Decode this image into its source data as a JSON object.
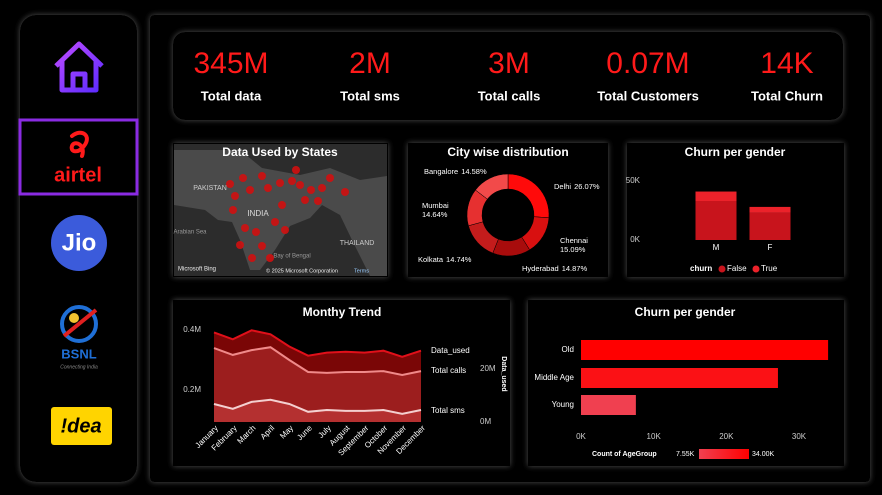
{
  "sidebar": {
    "airtel": "airtel",
    "jio": "Jio",
    "bsnl": "BSNL",
    "bsnl_tagline": "Connecting India",
    "idea": "!dea"
  },
  "kpis": [
    {
      "value": "345M",
      "label": "Total data"
    },
    {
      "value": "2M",
      "label": "Total sms"
    },
    {
      "value": "3M",
      "label": "Total calls"
    },
    {
      "value": "0.07M",
      "label": "Total Customers"
    },
    {
      "value": "14K",
      "label": "Total Churn"
    }
  ],
  "map": {
    "title": "Data Used by States",
    "labels": [
      "PAKISTAN",
      "INDIA",
      "Arabian Sea",
      "Bay of Bengal",
      "THAILAND"
    ],
    "provider": "Microsoft Bing",
    "attribution": "© 2025 Microsoft Corporation",
    "terms": "Terms"
  },
  "chart_data": [
    {
      "type": "donut",
      "title": "City wise distribution",
      "categories": [
        "Delhi",
        "Chennai",
        "Hyderabad",
        "Kolkata",
        "Mumbai",
        "Bangalore"
      ],
      "values": [
        26.07,
        15.09,
        14.87,
        14.74,
        14.64,
        14.58
      ],
      "value_labels": [
        "26.07%",
        "15.09%",
        "14.87%",
        "14.74%",
        "14.64%",
        "14.58%"
      ],
      "colors": [
        "#ff0a0a",
        "#d81010",
        "#a80c0c",
        "#c41c1c",
        "#e63030",
        "#f24a4a"
      ]
    },
    {
      "type": "stacked_bar",
      "title": "Churn per gender",
      "categories": [
        "M",
        "F"
      ],
      "series": [
        {
          "name": "False",
          "color": "#c8141c",
          "values": [
            33000,
            23000
          ]
        },
        {
          "name": "True",
          "color": "#ec222a",
          "values": [
            8000,
            5000
          ]
        }
      ],
      "ylim": [
        0,
        55000
      ],
      "yticks": [
        {
          "value": 0,
          "label": "0K"
        },
        {
          "value": 50000,
          "label": "50K"
        }
      ],
      "legend_title": "churn"
    },
    {
      "type": "area",
      "title": "Monthy Trend",
      "categories": [
        "January",
        "February",
        "March",
        "April",
        "May",
        "June",
        "July",
        "August",
        "September",
        "October",
        "November",
        "December"
      ],
      "series": [
        {
          "name": "Data_used",
          "axis": "y2",
          "color": "#e0101a",
          "fill": "#7a0606",
          "values": [
            33800000,
            31200000,
            34600000,
            33100000,
            28500000,
            25000000,
            26200000,
            26500000,
            26200000,
            26900000,
            24600000,
            26900000
          ]
        },
        {
          "name": "Total calls",
          "color": "#f08a8a",
          "fill": "#9c1e1e",
          "values": [
            340000,
            317000,
            333000,
            343000,
            300000,
            260000,
            257000,
            260000,
            260000,
            263000,
            250000,
            263000
          ]
        },
        {
          "name": "Total sms",
          "color": "#f4d0d0",
          "fill": "#b43030",
          "values": [
            153000,
            137000,
            160000,
            167000,
            153000,
            127000,
            133000,
            130000,
            130000,
            133000,
            120000,
            133000
          ]
        }
      ],
      "ylim": [
        93000,
        417000
      ],
      "yticks": [
        {
          "value": 200000,
          "label": "0.2M"
        },
        {
          "value": 400000,
          "label": "0.4M"
        }
      ],
      "y2lim": [
        0,
        36600000
      ],
      "y2ticks": [
        {
          "value": 0,
          "label": "0M"
        },
        {
          "value": 20000000,
          "label": "20M"
        }
      ],
      "y2_label": "Data_used"
    },
    {
      "type": "hbar",
      "title": "Churn per gender",
      "categories": [
        "Old",
        "Middle Age",
        "Young"
      ],
      "values": [
        34000,
        27100,
        7550
      ],
      "xlim": [
        0,
        34400
      ],
      "xticks": [
        {
          "value": 0,
          "label": "0K"
        },
        {
          "value": 10000,
          "label": "10K"
        },
        {
          "value": 20000,
          "label": "20K"
        },
        {
          "value": 30000,
          "label": "30K"
        }
      ],
      "color_scale": {
        "title": "Count of AgeGroup",
        "min": {
          "value": 7550,
          "label": "7.55K"
        },
        "max": {
          "value": 34000,
          "label": "34.00K"
        },
        "colors": [
          "#f04050",
          "#ff0000"
        ]
      }
    }
  ]
}
